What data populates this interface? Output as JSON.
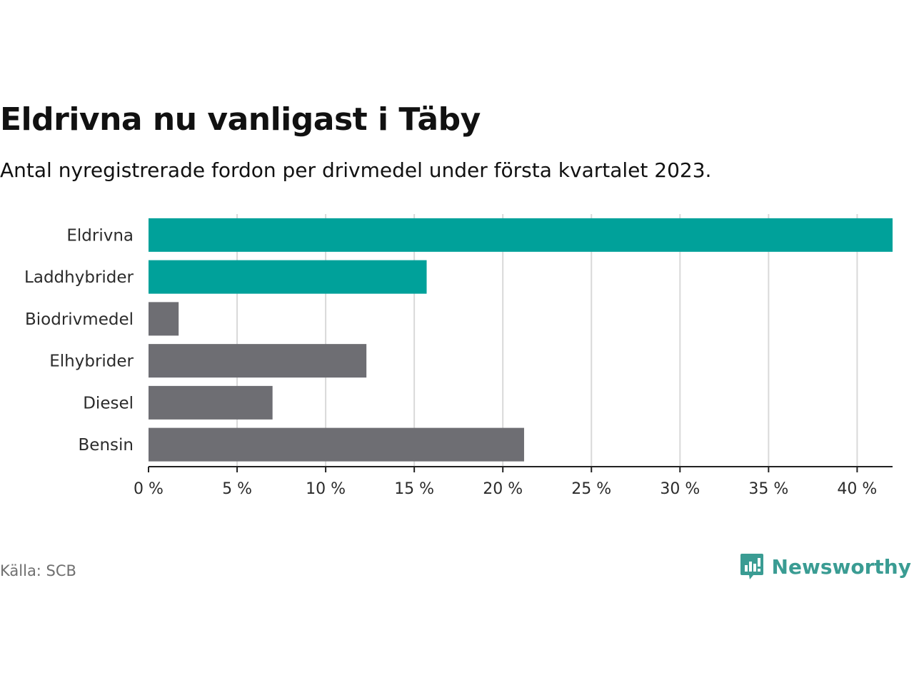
{
  "title": "Eldrivna nu vanligast i Täby",
  "subtitle": "Antal nyregistrerade fordon per drivmedel under första kvartalet 2023.",
  "source": "Källa: SCB",
  "brand": {
    "name": "Newsworthy",
    "icon": "newsworthy-logo-icon"
  },
  "colors": {
    "highlight": "#00a19a",
    "default": "#6e6e73",
    "grid": "#d9d9d9",
    "axis": "#222222",
    "brand": "#3a9c93"
  },
  "chart_data": {
    "type": "bar",
    "orientation": "horizontal",
    "categories": [
      "Eldrivna",
      "Laddhybrider",
      "Biodrivmedel",
      "Elhybrider",
      "Diesel",
      "Bensin"
    ],
    "values": [
      42.0,
      15.7,
      1.7,
      12.3,
      7.0,
      21.2
    ],
    "highlight": [
      true,
      true,
      false,
      false,
      false,
      false
    ],
    "xlim": [
      0,
      42
    ],
    "xticks": [
      0,
      5,
      10,
      15,
      20,
      25,
      30,
      35,
      40
    ],
    "xtick_labels": [
      "0 %",
      "5 %",
      "10 %",
      "15 %",
      "20 %",
      "25 %",
      "30 %",
      "35 %",
      "40 %"
    ],
    "xlabel": "",
    "ylabel": "",
    "grid": true
  }
}
